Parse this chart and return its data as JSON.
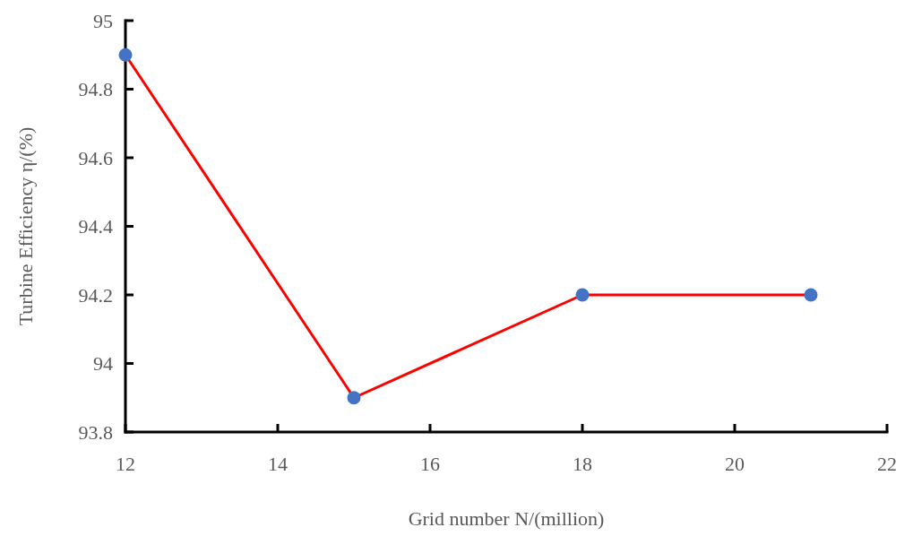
{
  "chart_data": {
    "type": "line",
    "xlabel": "Grid number N/(million)",
    "ylabel": "Turbine Efficiency η/(%)",
    "x": [
      12,
      15,
      18,
      21
    ],
    "series": [
      {
        "color": "#ff0000",
        "colors": [
          "#4472c4",
          "#4472c4",
          "#4472c4",
          "#4472c4"
        ],
        "values": [
          94.9,
          93.9,
          94.2,
          94.2
        ]
      }
    ],
    "xlim": [
      12,
      22
    ],
    "xticks": [
      12,
      14,
      16,
      18,
      20,
      22
    ],
    "ylim": [
      93.8,
      95
    ],
    "yticks": [
      93.8,
      {
        "value": 94,
        "label": "94"
      },
      94.2,
      94.4,
      94.6,
      94.8,
      {
        "value": 95,
        "label": "95"
      }
    ],
    "marker": "circle",
    "line_style": "solid"
  }
}
